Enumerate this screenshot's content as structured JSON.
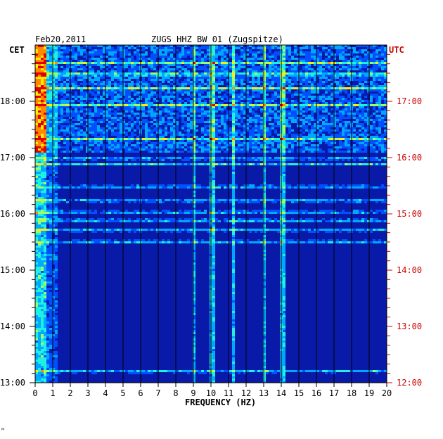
{
  "chart_data": {
    "type": "heatmap",
    "date": "Feb20,2011",
    "title": "ZUGS HHZ BW 01 (Zugspitze)",
    "xlabel": "FREQUENCY (HZ)",
    "left_axis_label": "CET",
    "right_axis_label": "UTC",
    "xlim": [
      0,
      20
    ],
    "x_ticks": [
      0,
      1,
      2,
      3,
      4,
      5,
      6,
      7,
      8,
      9,
      10,
      11,
      12,
      13,
      14,
      15,
      16,
      17,
      18,
      19,
      20
    ],
    "ylim_hours": [
      13,
      18.9
    ],
    "left_ticks": [
      "13:00",
      "14:00",
      "15:00",
      "16:00",
      "17:00",
      "18:00"
    ],
    "right_ticks": [
      "12:00",
      "13:00",
      "14:00",
      "15:00",
      "16:00",
      "17:00"
    ],
    "colors": {
      "background": "#0a1aa8",
      "grid": "#000000",
      "right_axis": "#cc0000",
      "text": "#000000"
    },
    "colormap": [
      "#00008f",
      "#0018c8",
      "#0050ff",
      "#00a8ff",
      "#20f0e0",
      "#a0ff60",
      "#ffee00",
      "#ff8800",
      "#e00000"
    ],
    "noisy_period_start_hour": 17.1,
    "bright_frequency_lines_hz": [
      9.0,
      10.0,
      11.2,
      13.0,
      14.0
    ],
    "bright_time_bands_hours": [
      13.22,
      15.52,
      15.73,
      15.9,
      16.05,
      16.25,
      16.5,
      16.9,
      17.0,
      17.35,
      17.95,
      18.25,
      18.5,
      18.7
    ]
  },
  "footer": {
    "mark": "ᴹ"
  }
}
